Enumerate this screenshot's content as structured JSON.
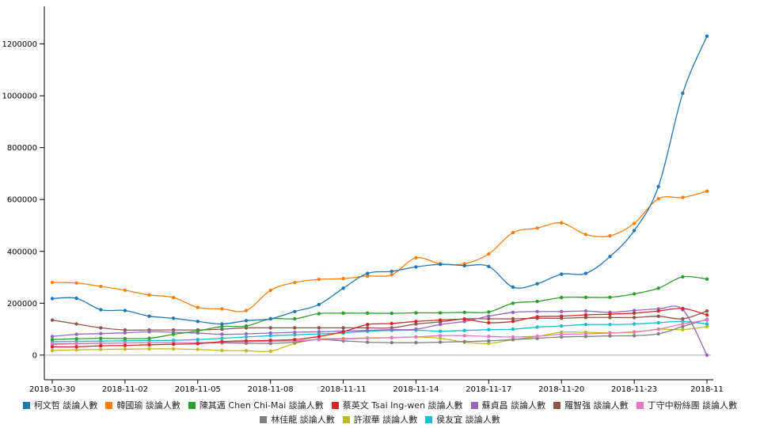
{
  "chart_data": {
    "type": "line",
    "x": [
      "2018-10-30",
      "2018-10-31",
      "2018-11-01",
      "2018-11-02",
      "2018-11-03",
      "2018-11-04",
      "2018-11-05",
      "2018-11-06",
      "2018-11-07",
      "2018-11-08",
      "2018-11-09",
      "2018-11-10",
      "2018-11-11",
      "2018-11-12",
      "2018-11-13",
      "2018-11-14",
      "2018-11-15",
      "2018-11-16",
      "2018-11-17",
      "2018-11-18",
      "2018-11-19",
      "2018-11-20",
      "2018-11-21",
      "2018-11-22",
      "2018-11-23",
      "2018-11-24",
      "2018-11-25",
      "2018-11-26"
    ],
    "x_tick_labels": [
      "2018-10-30",
      "2018-11-02",
      "2018-11-05",
      "2018-11-08",
      "2018-11-11",
      "2018-11-14",
      "2018-11-17",
      "2018-11-20",
      "2018-11-23",
      "2018-11"
    ],
    "y_ticks": [
      0,
      200000,
      400000,
      600000,
      800000,
      1000000,
      1200000
    ],
    "ylim": [
      -95000,
      1345000
    ],
    "grid": false,
    "legend_position": "bottom",
    "series": [
      {
        "name": "柯文哲 談論人數",
        "color": "#1f77b4",
        "values": [
          218000,
          219000,
          175000,
          172000,
          150000,
          142000,
          130000,
          120000,
          133000,
          140000,
          168000,
          195000,
          258000,
          315000,
          323000,
          340000,
          350000,
          345000,
          342000,
          262000,
          275000,
          312000,
          315000,
          380000,
          480000,
          650000,
          1010000,
          1230000
        ]
      },
      {
        "name": "韓國瑜 談論人數",
        "color": "#ff7f0e",
        "values": [
          280000,
          278000,
          265000,
          250000,
          232000,
          222000,
          184000,
          178000,
          172000,
          250000,
          280000,
          292000,
          295000,
          305000,
          310000,
          375000,
          352000,
          352000,
          390000,
          472000,
          490000,
          510000,
          465000,
          460000,
          508000,
          603000,
          608000,
          632000
        ]
      },
      {
        "name": "陳其邁 Chen Chi-Mai 談論人數",
        "color": "#2ca02c",
        "values": [
          60000,
          63000,
          65000,
          64000,
          65000,
          80000,
          93000,
          110000,
          112000,
          140000,
          140000,
          160000,
          162000,
          162000,
          161000,
          163000,
          163000,
          165000,
          166000,
          200000,
          207000,
          222000,
          223000,
          223000,
          236000,
          258000,
          302000,
          293000
        ]
      },
      {
        "name": "蔡英文 Tsai Ing-wen 談論人數",
        "color": "#d62728",
        "values": [
          32000,
          32000,
          36000,
          37000,
          40000,
          42000,
          44000,
          52000,
          55000,
          57000,
          60000,
          72000,
          90000,
          118000,
          122000,
          130000,
          135000,
          138000,
          125000,
          130000,
          148000,
          150000,
          155000,
          158000,
          162000,
          170000,
          180000,
          155000
        ]
      },
      {
        "name": "蘇貞昌 談論人數",
        "color": "#9467bd",
        "values": [
          72000,
          80000,
          83000,
          86000,
          90000,
          88000,
          85000,
          80000,
          82000,
          85000,
          88000,
          90000,
          92000,
          95000,
          98000,
          100000,
          118000,
          130000,
          150000,
          165000,
          168000,
          168000,
          170000,
          165000,
          172000,
          178000,
          175000,
          0
        ]
      },
      {
        "name": "羅智強 談論人數",
        "color": "#8c564b",
        "values": [
          135000,
          120000,
          105000,
          97000,
          97000,
          97000,
          97000,
          100000,
          105000,
          105000,
          105000,
          105000,
          105000,
          105000,
          105000,
          120000,
          128000,
          140000,
          140000,
          140000,
          142000,
          142000,
          145000,
          145000,
          145000,
          150000,
          140000,
          170000
        ]
      },
      {
        "name": "丁守中粉絲團 談論人數",
        "color": "#e377c2",
        "values": [
          45000,
          45000,
          46000,
          47000,
          48000,
          48000,
          48000,
          50000,
          52000,
          53000,
          55000,
          60000,
          62000,
          65000,
          67000,
          70000,
          75000,
          75000,
          72000,
          70000,
          73000,
          80000,
          82000,
          85000,
          90000,
          100000,
          120000,
          135000
        ]
      },
      {
        "name": "林佳龍 談論人數",
        "color": "#7f7f7f",
        "values": [
          42000,
          44000,
          46000,
          47000,
          48000,
          48000,
          48000,
          47000,
          46000,
          45000,
          50000,
          60000,
          55000,
          50000,
          48000,
          48000,
          50000,
          52000,
          55000,
          60000,
          65000,
          70000,
          72000,
          74000,
          75000,
          82000,
          110000,
          138000
        ]
      },
      {
        "name": "許淑華 談論人數",
        "color": "#bcbd22",
        "values": [
          18000,
          20000,
          22000,
          23000,
          24000,
          24000,
          22000,
          18000,
          17000,
          15000,
          45000,
          62000,
          64000,
          66000,
          68000,
          70000,
          65000,
          50000,
          45000,
          60000,
          72000,
          88000,
          88000,
          86000,
          88000,
          100000,
          98000,
          110000
        ]
      },
      {
        "name": "侯友宜 談論人數",
        "color": "#17becf",
        "values": [
          52000,
          53000,
          54000,
          55000,
          56000,
          57000,
          60000,
          65000,
          70000,
          75000,
          78000,
          82000,
          85000,
          92000,
          95000,
          96000,
          92000,
          95000,
          98000,
          100000,
          108000,
          112000,
          118000,
          118000,
          120000,
          125000,
          130000,
          120000
        ]
      }
    ]
  }
}
